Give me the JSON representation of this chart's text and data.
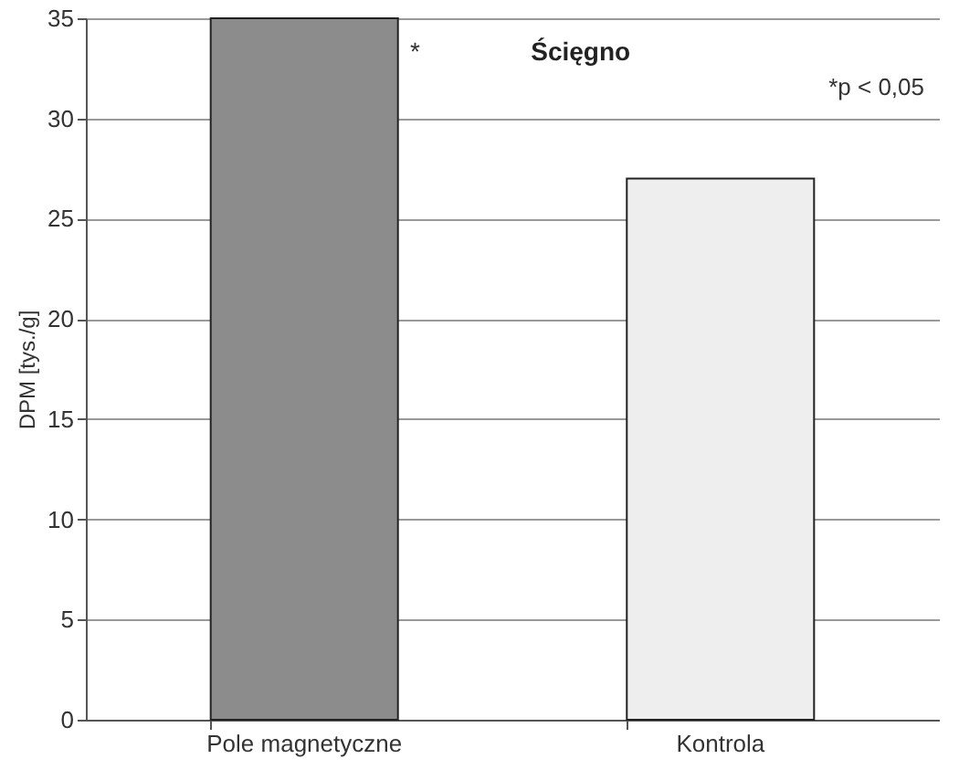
{
  "chart_data": {
    "type": "bar",
    "title": "Ścięgno",
    "ylabel": "DPM [tys./g]",
    "categories": [
      "Pole magnetyczne",
      "Kontrola"
    ],
    "values": [
      35,
      27
    ],
    "colors": [
      "#8c8c8c",
      "#eeeeee"
    ],
    "ylim": [
      0,
      35
    ],
    "yticks": [
      0,
      5,
      10,
      15,
      20,
      25,
      30,
      35
    ],
    "grid": "y",
    "annotations": [
      "*",
      "*p < 0,05"
    ]
  }
}
